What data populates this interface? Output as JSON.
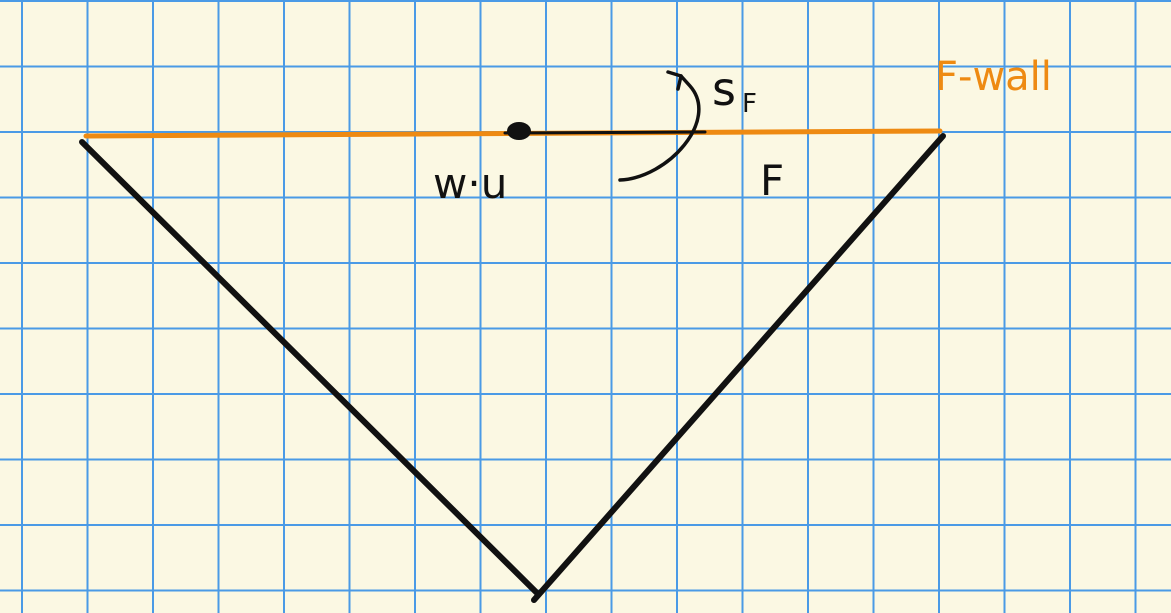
{
  "labels": {
    "point_label": "w·u",
    "face_label": "F",
    "reflection_label": "s",
    "reflection_subscript": "F",
    "wall_label": "F-wall"
  },
  "colors": {
    "background": "#fbf8e3",
    "grid": "#4a9ae6",
    "ink": "#111111",
    "wall": "#ee8a12"
  }
}
